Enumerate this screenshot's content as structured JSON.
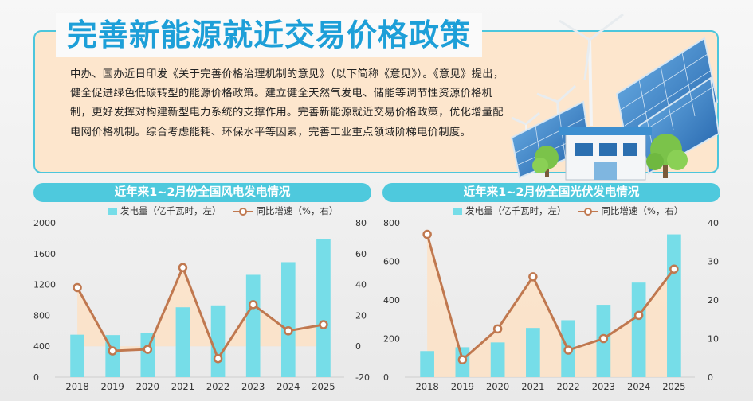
{
  "title": "完善新能源就近交易价格政策",
  "intro": "中办、国办近日印发《关于完善价格治理机制的意见》（以下简称《意见》）。《意见》提出，健全促进绿色低碳转型的能源价格政策。建立健全天然气发电、储能等调节性资源价格机制，更好发挥对构建新型电力系统的支撑作用。完善新能源就近交易价格政策，优化增量配电网价格机制。综合考虑能耗、环保水平等因素，完善工业重点领域阶梯电价制度。",
  "colors": {
    "title": "#1d9fd8",
    "panel_border": "#4cc6dc",
    "bar": "#76dde8",
    "line": "#c0784f",
    "area": "#fde2c6"
  },
  "chart_data": [
    {
      "type": "bar",
      "title": "近年来1~2月份全国风电发电情况",
      "categories": [
        "2018",
        "2019",
        "2020",
        "2021",
        "2022",
        "2023",
        "2024",
        "2025"
      ],
      "series": [
        {
          "name": "发电量（亿千瓦时，左）",
          "type": "bar",
          "axis": "left",
          "values": [
            550,
            545,
            575,
            905,
            930,
            1325,
            1490,
            1785
          ]
        },
        {
          "name": "同比增速（%，右）",
          "type": "line",
          "axis": "right",
          "values": [
            38,
            -3,
            -2,
            51,
            -8,
            27,
            10,
            14
          ]
        }
      ],
      "y_left": {
        "range": [
          0,
          2000
        ],
        "ticks": [
          "0",
          "400",
          "800",
          "1200",
          "1600",
          "2000"
        ]
      },
      "y_right": {
        "range": [
          -20,
          80
        ],
        "ticks": [
          "-20",
          "0",
          "20",
          "40",
          "60",
          "80"
        ]
      },
      "legend": "top",
      "grid": false
    },
    {
      "type": "bar",
      "title": "近年来1~2月份全国光伏发电情况",
      "categories": [
        "2018",
        "2019",
        "2020",
        "2021",
        "2022",
        "2023",
        "2024",
        "2025"
      ],
      "series": [
        {
          "name": "发电量（亿千瓦时，左）",
          "type": "bar",
          "axis": "left",
          "values": [
            135,
            155,
            180,
            255,
            295,
            375,
            490,
            740
          ]
        },
        {
          "name": "同比增速（%，右）",
          "type": "line",
          "axis": "right",
          "values": [
            37,
            4.5,
            12.5,
            26,
            7,
            10,
            16,
            28
          ]
        }
      ],
      "y_left": {
        "range": [
          0,
          800
        ],
        "ticks": [
          "0",
          "200",
          "400",
          "600",
          "800"
        ]
      },
      "y_right": {
        "range": [
          0,
          40
        ],
        "ticks": [
          "0",
          "10",
          "20",
          "30",
          "40"
        ]
      },
      "legend": "top",
      "grid": false
    }
  ]
}
